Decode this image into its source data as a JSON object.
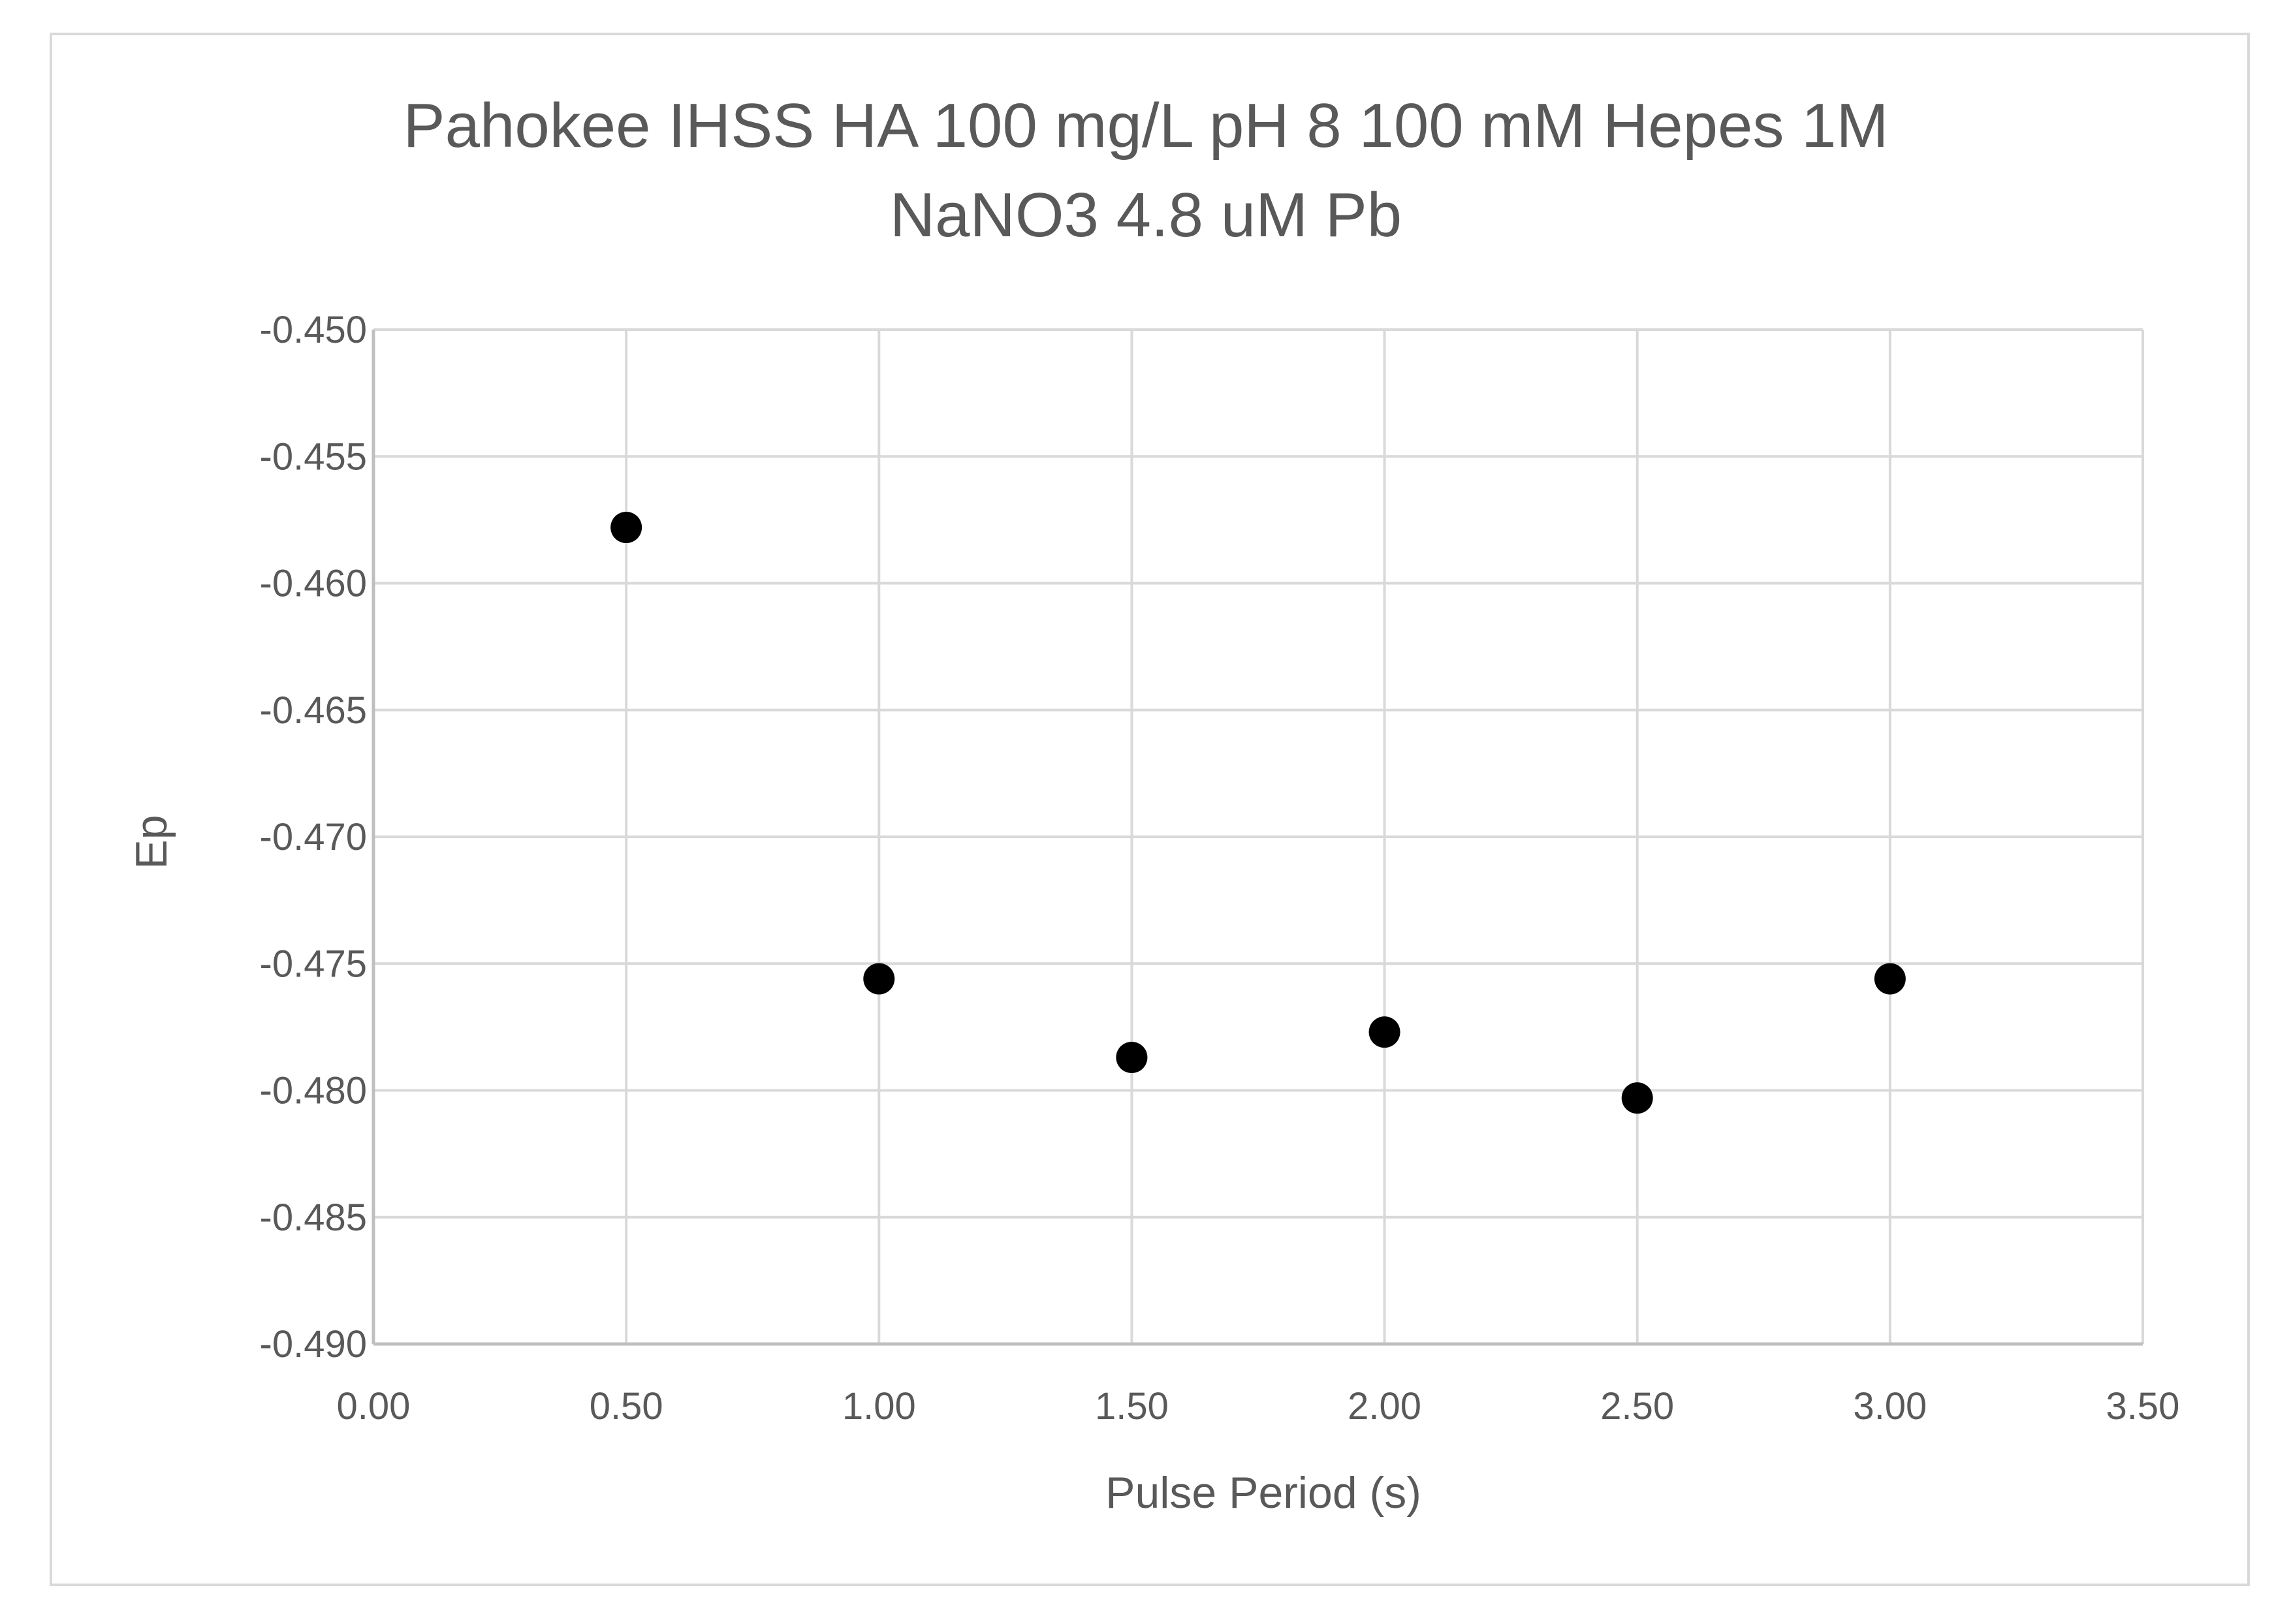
{
  "chart_data": {
    "type": "scatter",
    "title_lines": [
      "Pahokee IHSS HA 100 mg/L pH 8 100 mM Hepes 1M",
      "NaNO3 4.8 uM Pb"
    ],
    "xlabel": "Pulse Period (s)",
    "ylabel": "Ep",
    "xlim": [
      0.0,
      3.5
    ],
    "ylim": [
      -0.49,
      -0.45
    ],
    "x_ticks": [
      0.0,
      0.5,
      1.0,
      1.5,
      2.0,
      2.5,
      3.0,
      3.5
    ],
    "x_tick_labels": [
      "0.00",
      "0.50",
      "1.00",
      "1.50",
      "2.00",
      "2.50",
      "3.00",
      "3.50"
    ],
    "y_ticks": [
      -0.45,
      -0.455,
      -0.46,
      -0.465,
      -0.47,
      -0.475,
      -0.48,
      -0.485,
      -0.49
    ],
    "y_tick_labels": [
      "-0.450",
      "-0.455",
      "-0.460",
      "-0.465",
      "-0.470",
      "-0.475",
      "-0.480",
      "-0.485",
      "-0.490"
    ],
    "grid": true,
    "legend": "none",
    "series": [
      {
        "color": "#000000",
        "points": [
          {
            "x": 0.5,
            "y": -0.4578
          },
          {
            "x": 1.0,
            "y": -0.4756
          },
          {
            "x": 1.5,
            "y": -0.4787
          },
          {
            "x": 2.0,
            "y": -0.4777
          },
          {
            "x": 2.5,
            "y": -0.4803
          },
          {
            "x": 3.0,
            "y": -0.4756
          }
        ]
      }
    ],
    "colors": {
      "grid": "#d9d9d9",
      "axis_text": "#595959",
      "marker": "#000000"
    }
  }
}
